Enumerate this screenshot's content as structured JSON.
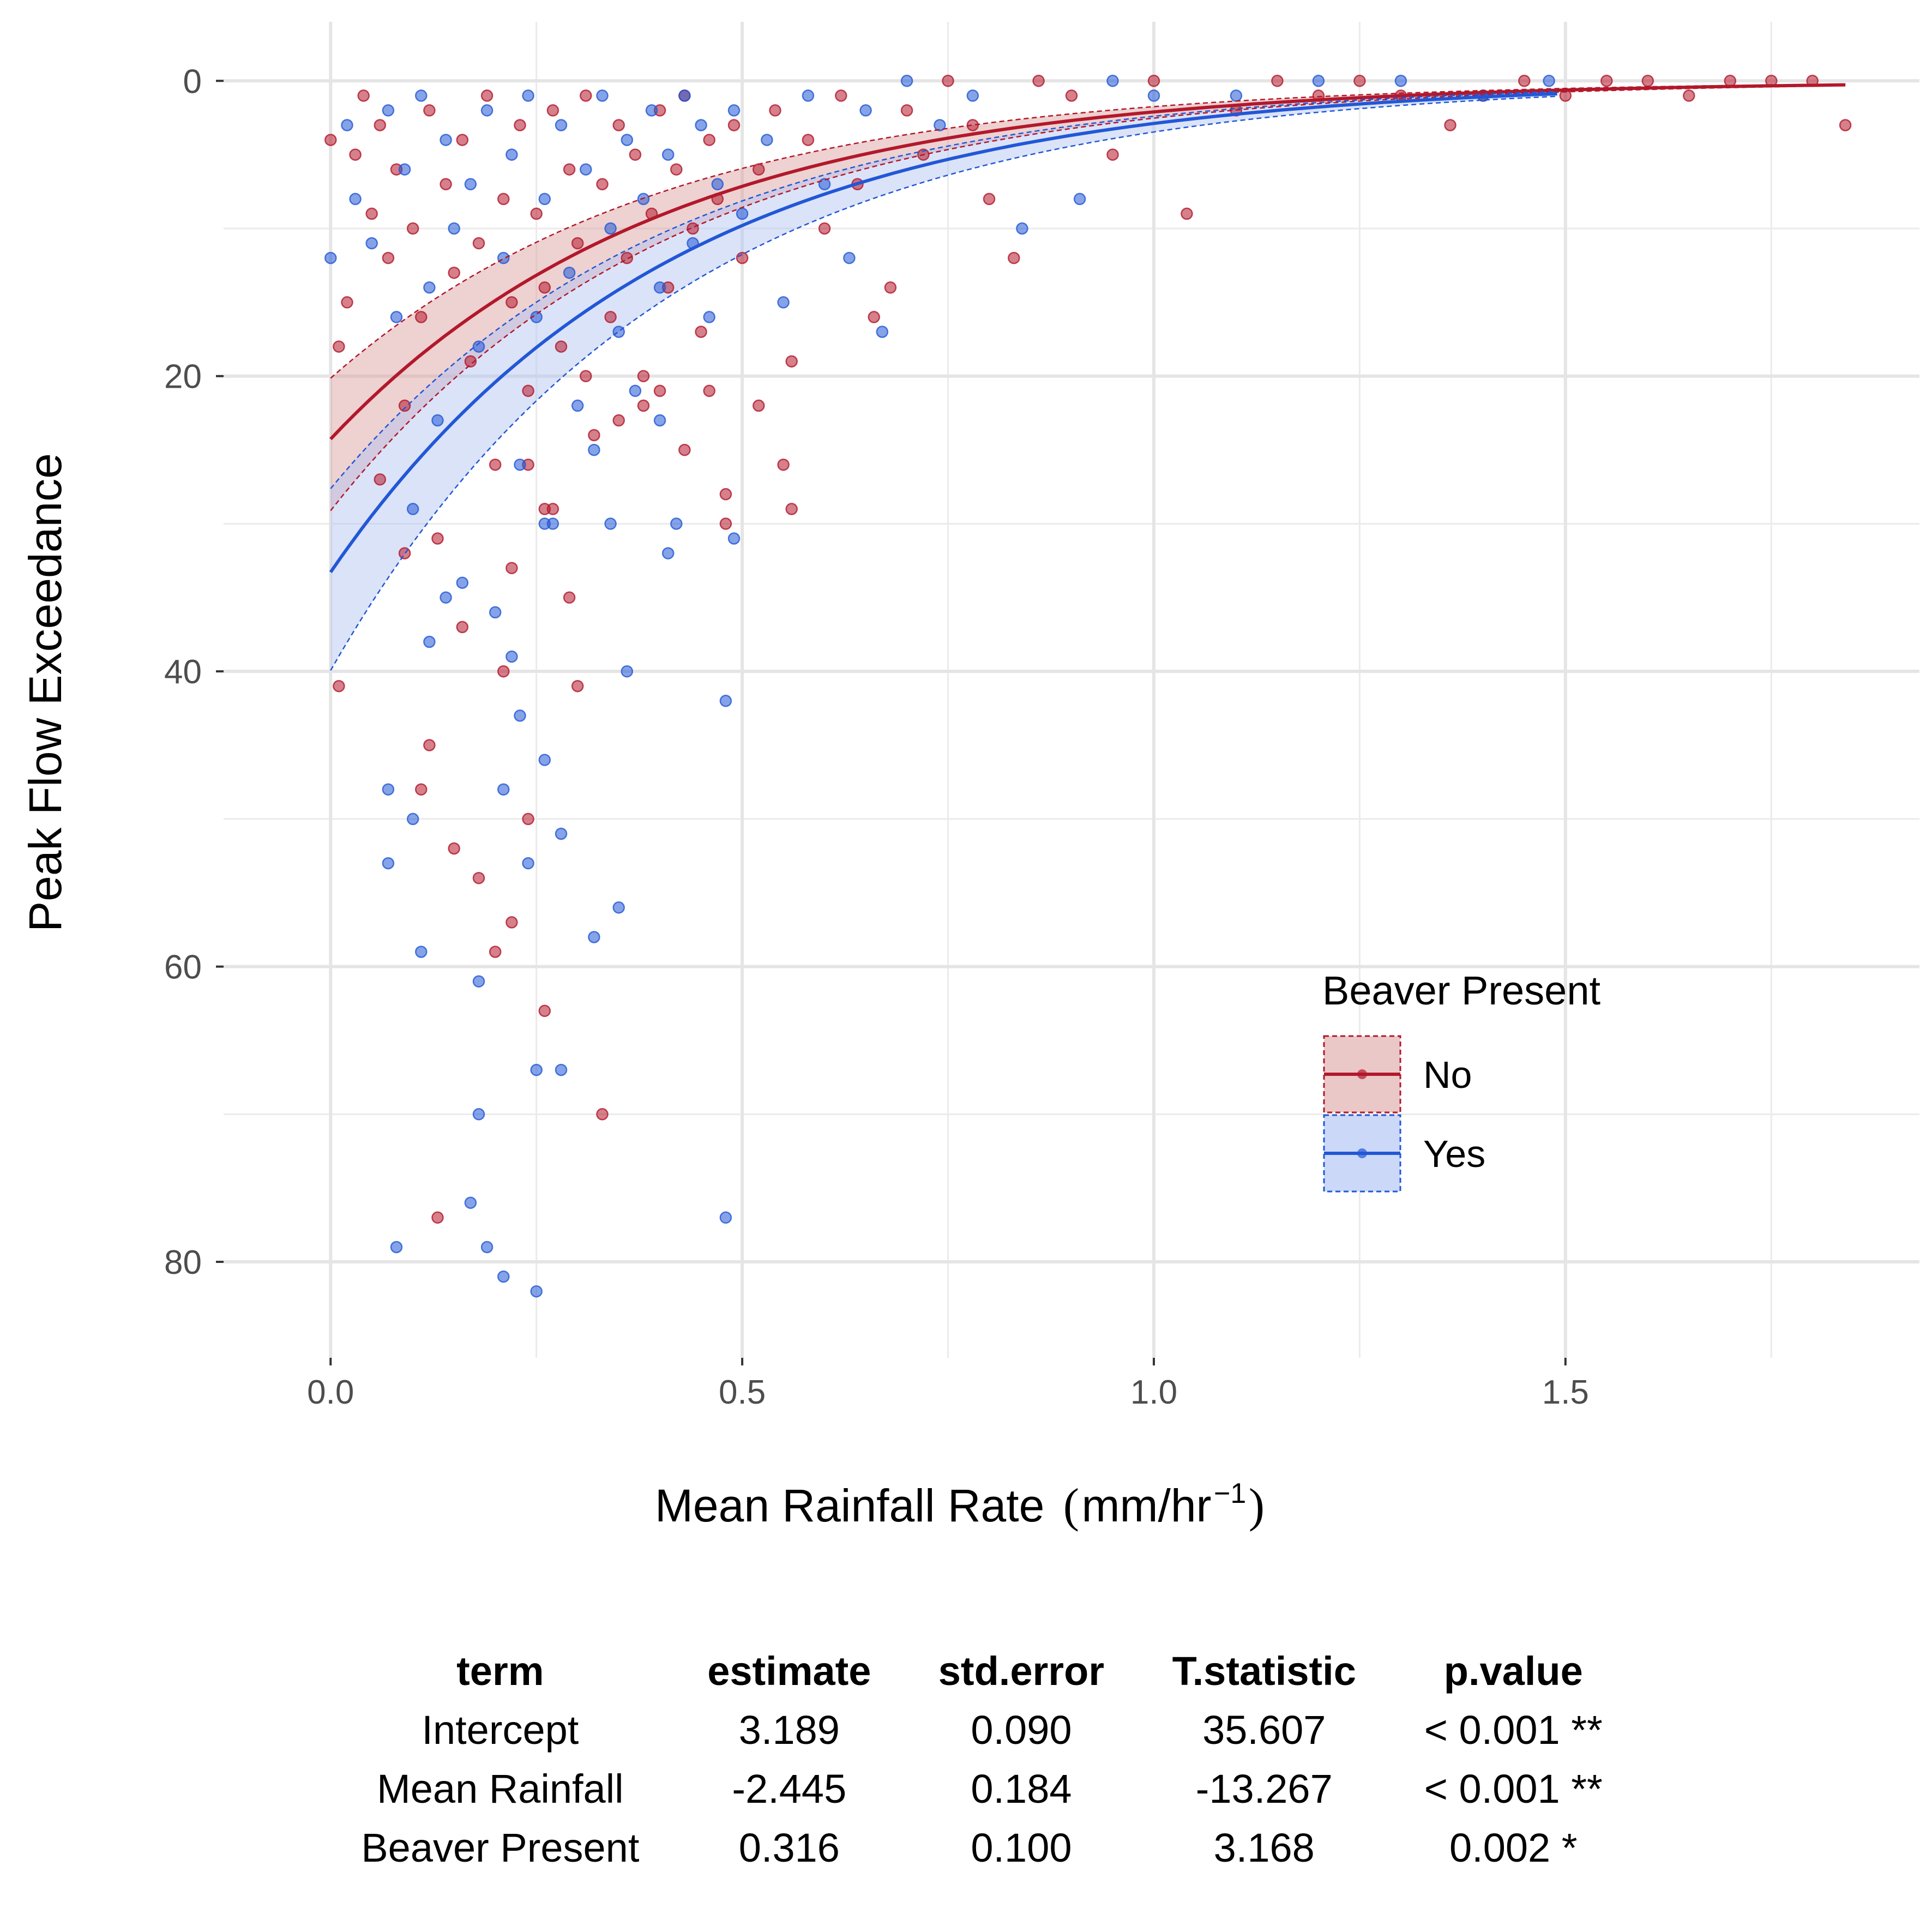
{
  "chart_data": {
    "type": "scatter",
    "title": "",
    "xlabel": "Mean Rainfall Rate",
    "xlabel_units": {
      "open": "(",
      "base": "mm/hr",
      "sup": "−1",
      "close": ")"
    },
    "ylabel": "Peak Flow Exceedance",
    "xlim": [
      -0.13,
      1.93
    ],
    "ylim": [
      86.5,
      -4
    ],
    "y_reversed": true,
    "x_ticks": [
      0.0,
      0.5,
      1.0,
      1.5
    ],
    "x_tick_labels": [
      "0.0",
      "0.5",
      "1.0",
      "1.5"
    ],
    "y_ticks": [
      0,
      20,
      40,
      60,
      80
    ],
    "y_tick_labels": [
      "0",
      "20",
      "40",
      "60",
      "80"
    ],
    "x_minor_ticks": [
      0.25,
      0.75,
      1.25,
      1.75
    ],
    "y_minor_ticks": [
      10,
      30,
      50,
      70
    ],
    "grid": true,
    "legend": {
      "title": "Beaver Present",
      "position": "right",
      "entries": [
        {
          "label": "No",
          "color": "#B2182B"
        },
        {
          "label": "Yes",
          "color": "#2257D6"
        }
      ]
    },
    "series": [
      {
        "name": "No",
        "color": "#B2182B",
        "fill": "#D99A9A",
        "model": {
          "intercept": 3.189,
          "slope": -2.445,
          "offset": 0.0
        },
        "x_range": [
          0,
          1.84
        ],
        "band": [
          1.2,
          0.83
        ],
        "points": [
          [
            0.0,
            4
          ],
          [
            0.01,
            18
          ],
          [
            0.02,
            15
          ],
          [
            0.03,
            5
          ],
          [
            0.04,
            1
          ],
          [
            0.05,
            9
          ],
          [
            0.06,
            3
          ],
          [
            0.07,
            12
          ],
          [
            0.08,
            6
          ],
          [
            0.09,
            22
          ],
          [
            0.1,
            10
          ],
          [
            0.11,
            16
          ],
          [
            0.12,
            2
          ],
          [
            0.13,
            31
          ],
          [
            0.14,
            7
          ],
          [
            0.15,
            13
          ],
          [
            0.16,
            4
          ],
          [
            0.17,
            19
          ],
          [
            0.18,
            11
          ],
          [
            0.19,
            1
          ],
          [
            0.2,
            26
          ],
          [
            0.21,
            8
          ],
          [
            0.22,
            15
          ],
          [
            0.23,
            3
          ],
          [
            0.24,
            21
          ],
          [
            0.25,
            9
          ],
          [
            0.26,
            14
          ],
          [
            0.27,
            2
          ],
          [
            0.28,
            18
          ],
          [
            0.29,
            6
          ],
          [
            0.3,
            11
          ],
          [
            0.31,
            1
          ],
          [
            0.32,
            24
          ],
          [
            0.33,
            7
          ],
          [
            0.34,
            16
          ],
          [
            0.35,
            3
          ],
          [
            0.36,
            12
          ],
          [
            0.37,
            5
          ],
          [
            0.38,
            20
          ],
          [
            0.39,
            9
          ],
          [
            0.4,
            2
          ],
          [
            0.41,
            14
          ],
          [
            0.42,
            6
          ],
          [
            0.43,
            1
          ],
          [
            0.44,
            10
          ],
          [
            0.45,
            17
          ],
          [
            0.46,
            4
          ],
          [
            0.47,
            8
          ],
          [
            0.48,
            28
          ],
          [
            0.49,
            3
          ],
          [
            0.5,
            12
          ],
          [
            0.52,
            6
          ],
          [
            0.54,
            2
          ],
          [
            0.55,
            26
          ],
          [
            0.56,
            19
          ],
          [
            0.58,
            4
          ],
          [
            0.6,
            10
          ],
          [
            0.62,
            1
          ],
          [
            0.64,
            7
          ],
          [
            0.66,
            16
          ],
          [
            0.68,
            14
          ],
          [
            0.7,
            2
          ],
          [
            0.72,
            5
          ],
          [
            0.75,
            0
          ],
          [
            0.78,
            3
          ],
          [
            0.8,
            8
          ],
          [
            0.83,
            12
          ],
          [
            0.86,
            0
          ],
          [
            0.9,
            1
          ],
          [
            0.95,
            5
          ],
          [
            1.0,
            0
          ],
          [
            1.04,
            9
          ],
          [
            1.1,
            2
          ],
          [
            1.15,
            0
          ],
          [
            1.2,
            1
          ],
          [
            1.25,
            0
          ],
          [
            1.3,
            1
          ],
          [
            1.36,
            3
          ],
          [
            1.4,
            1
          ],
          [
            1.45,
            0
          ],
          [
            1.5,
            1
          ],
          [
            1.55,
            0
          ],
          [
            1.6,
            0
          ],
          [
            1.65,
            1
          ],
          [
            1.7,
            0
          ],
          [
            1.75,
            0
          ],
          [
            1.8,
            0
          ],
          [
            1.84,
            3
          ],
          [
            0.01,
            41
          ],
          [
            0.12,
            45
          ],
          [
            0.15,
            52
          ],
          [
            0.18,
            54
          ],
          [
            0.2,
            59
          ],
          [
            0.22,
            57
          ],
          [
            0.24,
            50
          ],
          [
            0.26,
            63
          ],
          [
            0.13,
            77
          ],
          [
            0.33,
            70
          ],
          [
            0.22,
            33
          ],
          [
            0.26,
            29
          ],
          [
            0.29,
            35
          ],
          [
            0.16,
            37
          ],
          [
            0.3,
            41
          ],
          [
            0.06,
            27
          ],
          [
            0.09,
            32
          ],
          [
            0.24,
            26
          ],
          [
            0.11,
            48
          ],
          [
            0.21,
            40
          ],
          [
            0.27,
            29
          ],
          [
            0.35,
            23
          ],
          [
            0.38,
            22
          ],
          [
            0.43,
            25
          ],
          [
            0.46,
            21
          ],
          [
            0.52,
            22
          ],
          [
            0.56,
            29
          ],
          [
            0.48,
            30
          ],
          [
            0.31,
            20
          ],
          [
            0.4,
            21
          ]
        ]
      },
      {
        "name": "Yes",
        "color": "#2257D6",
        "fill": "#AFC2F2",
        "model": {
          "intercept": 3.189,
          "slope": -2.445,
          "offset": 0.316
        },
        "x_range": [
          0,
          1.49
        ],
        "band": [
          1.2,
          0.83
        ],
        "points": [
          [
            0.0,
            12
          ],
          [
            0.02,
            3
          ],
          [
            0.03,
            8
          ],
          [
            0.05,
            11
          ],
          [
            0.07,
            2
          ],
          [
            0.08,
            16
          ],
          [
            0.09,
            6
          ],
          [
            0.1,
            29
          ],
          [
            0.11,
            1
          ],
          [
            0.12,
            14
          ],
          [
            0.13,
            23
          ],
          [
            0.14,
            4
          ],
          [
            0.15,
            10
          ],
          [
            0.16,
            34
          ],
          [
            0.17,
            7
          ],
          [
            0.18,
            18
          ],
          [
            0.19,
            2
          ],
          [
            0.2,
            36
          ],
          [
            0.21,
            12
          ],
          [
            0.22,
            5
          ],
          [
            0.23,
            26
          ],
          [
            0.24,
            1
          ],
          [
            0.25,
            16
          ],
          [
            0.26,
            8
          ],
          [
            0.27,
            30
          ],
          [
            0.28,
            3
          ],
          [
            0.29,
            13
          ],
          [
            0.3,
            22
          ],
          [
            0.31,
            6
          ],
          [
            0.32,
            25
          ],
          [
            0.33,
            1
          ],
          [
            0.34,
            10
          ],
          [
            0.35,
            17
          ],
          [
            0.36,
            4
          ],
          [
            0.37,
            21
          ],
          [
            0.38,
            8
          ],
          [
            0.39,
            2
          ],
          [
            0.4,
            14
          ],
          [
            0.41,
            5
          ],
          [
            0.42,
            30
          ],
          [
            0.43,
            1
          ],
          [
            0.44,
            11
          ],
          [
            0.45,
            3
          ],
          [
            0.46,
            16
          ],
          [
            0.47,
            7
          ],
          [
            0.48,
            42
          ],
          [
            0.49,
            2
          ],
          [
            0.5,
            9
          ],
          [
            0.53,
            4
          ],
          [
            0.55,
            15
          ],
          [
            0.58,
            1
          ],
          [
            0.6,
            7
          ],
          [
            0.63,
            12
          ],
          [
            0.65,
            2
          ],
          [
            0.67,
            17
          ],
          [
            0.7,
            0
          ],
          [
            0.74,
            3
          ],
          [
            0.78,
            1
          ],
          [
            0.84,
            10
          ],
          [
            0.91,
            8
          ],
          [
            0.95,
            0
          ],
          [
            1.0,
            1
          ],
          [
            1.1,
            1
          ],
          [
            1.2,
            0
          ],
          [
            1.3,
            0
          ],
          [
            1.4,
            1
          ],
          [
            1.48,
            0
          ],
          [
            0.07,
            48
          ],
          [
            0.07,
            53
          ],
          [
            0.1,
            50
          ],
          [
            0.11,
            59
          ],
          [
            0.18,
            61
          ],
          [
            0.18,
            70
          ],
          [
            0.17,
            76
          ],
          [
            0.19,
            79
          ],
          [
            0.21,
            81
          ],
          [
            0.25,
            82
          ],
          [
            0.25,
            67
          ],
          [
            0.28,
            67
          ],
          [
            0.24,
            53
          ],
          [
            0.26,
            46
          ],
          [
            0.28,
            51
          ],
          [
            0.32,
            58
          ],
          [
            0.35,
            56
          ],
          [
            0.48,
            77
          ],
          [
            0.08,
            79
          ],
          [
            0.21,
            48
          ],
          [
            0.23,
            43
          ],
          [
            0.36,
            40
          ],
          [
            0.22,
            39
          ],
          [
            0.12,
            38
          ],
          [
            0.14,
            35
          ],
          [
            0.26,
            30
          ],
          [
            0.34,
            30
          ],
          [
            0.41,
            32
          ],
          [
            0.49,
            31
          ],
          [
            0.4,
            23
          ]
        ]
      }
    ]
  },
  "stats_table": {
    "headers": [
      "term",
      "estimate",
      "std.error",
      "T.statistic",
      "p.value"
    ],
    "rows": [
      [
        "Intercept",
        "3.189",
        "0.090",
        "35.607",
        "< 0.001 **"
      ],
      [
        "Mean Rainfall",
        "-2.445",
        "0.184",
        "-13.267",
        "< 0.001 **"
      ],
      [
        "Beaver Present",
        "0.316",
        "0.100",
        "3.168",
        "0.002 *"
      ]
    ]
  }
}
